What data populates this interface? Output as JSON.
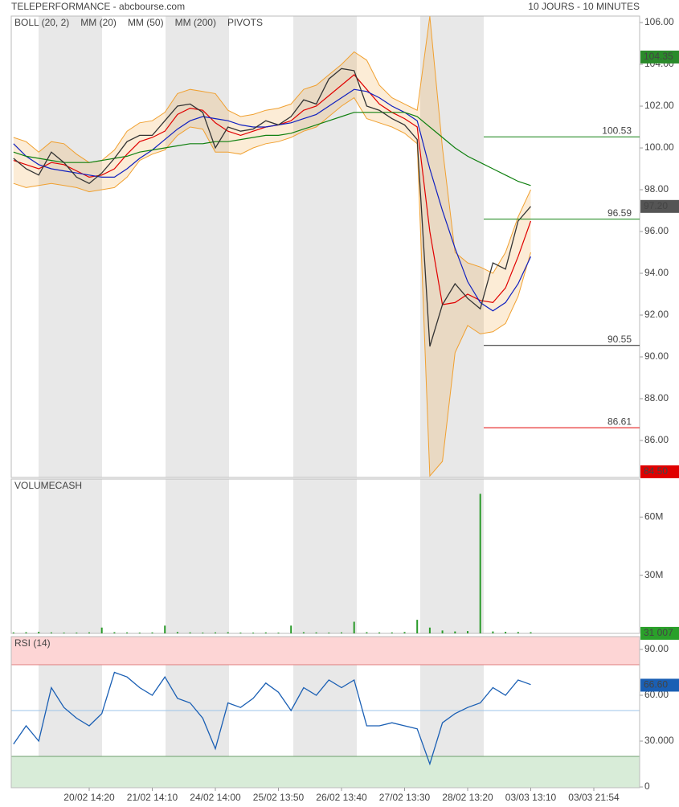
{
  "header": {
    "title": "TELEPERFORMANCE - abcbourse.com",
    "period": "10 JOURS - 10 MINUTES"
  },
  "chart_data": [
    {
      "type": "line",
      "ylim": [
        84.23,
        106.31
      ],
      "yticks": [
        {
          "value": 106,
          "label": "106.00"
        },
        {
          "value": 104,
          "label": "104.00"
        },
        {
          "value": 102,
          "label": "102.00"
        },
        {
          "value": 100,
          "label": "100.00"
        },
        {
          "value": 98,
          "label": "98.00"
        },
        {
          "value": 96,
          "label": "96.00"
        },
        {
          "value": 94,
          "label": "94.00"
        },
        {
          "value": 92,
          "label": "92.00"
        },
        {
          "value": 90,
          "label": "90.00"
        },
        {
          "value": 88,
          "label": "88.00"
        },
        {
          "value": 86,
          "label": "86.00"
        }
      ],
      "values": [
        99.5,
        99.0,
        98.7,
        99.8,
        99.3,
        98.6,
        98.3,
        98.8,
        99.5,
        100.3,
        100.6,
        100.6,
        101.3,
        102.0,
        102.1,
        101.7,
        100.0,
        101.0,
        100.8,
        100.9,
        101.3,
        101.1,
        101.5,
        102.3,
        102.1,
        103.3,
        103.8,
        103.7,
        102.0,
        101.8,
        101.4,
        101.1,
        100.4,
        90.5,
        92.5,
        93.5,
        92.8,
        92.3,
        94.5,
        94.2,
        96.5,
        97.2,
        null,
        null,
        null,
        null,
        null,
        null,
        null,
        null
      ],
      "color": "#333333",
      "series": [
        {
          "name": "BOLL (20, 2)",
          "color": "#f0a030",
          "values": [
            100.5,
            100.3,
            99.8,
            100.3,
            100.2,
            99.7,
            99.3,
            99.4,
            99.9,
            100.8,
            101.2,
            101.3,
            101.7,
            102.6,
            102.8,
            102.7,
            102.6,
            101.8,
            101.5,
            101.6,
            101.8,
            101.9,
            102.1,
            102.8,
            103.0,
            103.5,
            104.0,
            104.6,
            104.2,
            103.0,
            102.4,
            102.1,
            101.8,
            106.3,
            100.0,
            95.0,
            94.5,
            94.3,
            94.0,
            95.0,
            96.7,
            98.0,
            null,
            null,
            null,
            null,
            null,
            null,
            null,
            null
          ],
          "lower": [
            98.3,
            98.1,
            98.2,
            98.3,
            98.2,
            98.1,
            97.9,
            98.0,
            98.1,
            98.6,
            99.4,
            99.7,
            99.9,
            100.6,
            101.0,
            100.9,
            99.8,
            99.8,
            99.7,
            100.0,
            100.2,
            100.3,
            100.5,
            100.8,
            101.0,
            101.5,
            102.0,
            102.4,
            101.4,
            101.2,
            101.0,
            100.7,
            100.2,
            84.3,
            85.0,
            90.2,
            91.5,
            91.1,
            91.2,
            91.6,
            92.9,
            95.0,
            null,
            null,
            null,
            null,
            null,
            null,
            null,
            null
          ]
        },
        {
          "name": "MM (20)",
          "color": "#e00000",
          "values": [
            99.4,
            99.2,
            99.0,
            99.3,
            99.2,
            98.9,
            98.6,
            98.7,
            99.0,
            99.7,
            100.3,
            100.5,
            100.8,
            101.6,
            101.9,
            101.8,
            101.2,
            100.8,
            100.6,
            100.8,
            101.0,
            101.1,
            101.3,
            101.8,
            102.0,
            102.5,
            103.0,
            103.5,
            102.8,
            102.1,
            101.7,
            101.4,
            101.0,
            96.0,
            92.5,
            92.6,
            93.0,
            92.7,
            92.6,
            93.3,
            94.8,
            96.5,
            null,
            null,
            null,
            null,
            null,
            null,
            null,
            null
          ]
        },
        {
          "name": "MM (50)",
          "color": "#1020c0",
          "values": [
            100.2,
            99.6,
            99.2,
            99.0,
            98.9,
            98.8,
            98.7,
            98.6,
            98.6,
            99.0,
            99.5,
            99.9,
            100.4,
            100.9,
            101.3,
            101.5,
            101.4,
            101.3,
            101.1,
            101.0,
            101.0,
            101.1,
            101.2,
            101.4,
            101.6,
            102.0,
            102.4,
            102.8,
            102.7,
            102.4,
            102.0,
            101.7,
            101.3,
            99.0,
            97.0,
            95.2,
            93.6,
            92.6,
            92.2,
            92.6,
            93.5,
            94.8,
            null,
            null,
            null,
            null,
            null,
            null,
            null,
            null
          ]
        },
        {
          "name": "MM (200)",
          "color": "#108010",
          "values": [
            99.8,
            99.6,
            99.5,
            99.4,
            99.3,
            99.3,
            99.3,
            99.4,
            99.5,
            99.6,
            99.8,
            99.9,
            100.0,
            100.1,
            100.2,
            100.2,
            100.3,
            100.3,
            100.4,
            100.5,
            100.6,
            100.6,
            100.7,
            100.9,
            101.1,
            101.3,
            101.5,
            101.7,
            101.7,
            101.7,
            101.7,
            101.7,
            101.5,
            101.0,
            100.5,
            100.0,
            99.6,
            99.3,
            99.0,
            98.7,
            98.4,
            98.2,
            null,
            null,
            null,
            null,
            null,
            null,
            null,
            null
          ]
        }
      ],
      "pivots": {
        "name": "PIVOTS",
        "color": "#666666",
        "levels": [
          {
            "value": 100.53,
            "color": "#108010"
          },
          {
            "value": 96.59,
            "color": "#108010"
          },
          {
            "value": 90.55,
            "color": "#222222"
          },
          {
            "value": 86.61,
            "color": "#e00000"
          }
        ]
      },
      "axis_tags": [
        {
          "value": 104.35,
          "color": "#2a8a2a"
        },
        {
          "value": 97.2,
          "label": "97.20",
          "color": "#555555"
        },
        {
          "value": 84.5,
          "label": "84.50",
          "color": "#e00000"
        }
      ]
    },
    {
      "type": "bar",
      "title": "VOLUMECASH",
      "title_color": "#3a9a3a",
      "color": "#2a9a2a",
      "ylim": [
        0,
        79600000
      ],
      "yticks": [
        {
          "value": 60000000,
          "label": "60M"
        },
        {
          "value": 30000000,
          "label": "30M"
        }
      ],
      "values": [
        500000,
        600000,
        800000,
        500000,
        400000,
        400000,
        500000,
        3000000,
        600000,
        500000,
        400000,
        500000,
        4000000,
        700000,
        500000,
        400000,
        500000,
        600000,
        400000,
        400000,
        500000,
        400000,
        4000000,
        600000,
        500000,
        400000,
        500000,
        6000000,
        600000,
        500000,
        500000,
        700000,
        7000000,
        3000000,
        1500000,
        1000000,
        1200000,
        72000000,
        1000000,
        800000,
        700000,
        600000,
        null,
        null,
        null,
        null,
        null,
        null,
        null,
        null
      ],
      "axis_tags": [
        {
          "value": 31007,
          "label": "31 007",
          "color": "#2aa02a"
        }
      ]
    },
    {
      "type": "line",
      "title": "RSI (14)",
      "title_color": "#1a5fb4",
      "color": "#1a5fb4",
      "ylim": [
        -0.5,
        98.4
      ],
      "yticks": [
        {
          "value": 90,
          "label": "90.00"
        },
        {
          "value": 60,
          "label": "60.00"
        },
        {
          "value": 30,
          "label": "30.000"
        },
        0
      ],
      "gridlines": [
        50
      ],
      "zones": [
        {
          "above": 80,
          "color": "#fdd5d5"
        },
        {
          "below": 20,
          "color": "#d8ecd8"
        }
      ],
      "values": [
        28,
        40,
        30,
        65,
        52,
        45,
        40,
        48,
        75,
        72,
        65,
        60,
        72,
        58,
        55,
        45,
        25,
        55,
        52,
        58,
        68,
        62,
        50,
        65,
        60,
        70,
        65,
        70,
        40,
        40,
        42,
        40,
        38,
        15,
        42,
        48,
        52,
        55,
        65,
        60,
        70,
        67,
        null,
        null,
        null,
        null,
        null,
        null,
        null,
        null
      ],
      "categories": [
        null,
        null,
        null,
        null,
        null,
        null,
        "20/02 14:20",
        null,
        null,
        null,
        null,
        "21/02 14:10",
        null,
        null,
        null,
        null,
        "24/02 14:00",
        null,
        null,
        null,
        null,
        "25/02 13:50",
        null,
        null,
        null,
        null,
        "26/02 13:40",
        null,
        null,
        null,
        null,
        "27/02 13:30",
        null,
        null,
        null,
        null,
        "28/02 13:20",
        null,
        null,
        null,
        null,
        "03/03 13:10",
        null,
        null,
        null,
        null,
        "03/03 21:54",
        null,
        null,
        null
      ],
      "axis_tags": [
        {
          "value": 66.6,
          "label": "66.60",
          "color": "#1a5fb4"
        }
      ]
    }
  ]
}
